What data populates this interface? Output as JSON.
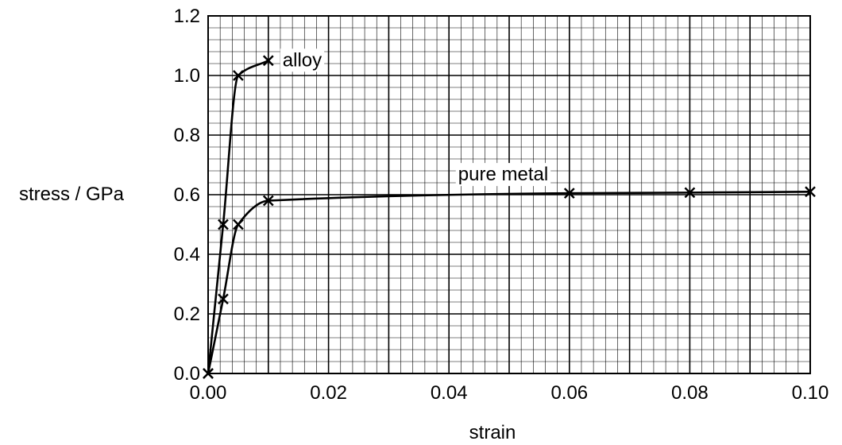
{
  "chart_data": {
    "type": "line",
    "xlabel": "strain",
    "ylabel": "stress / GPa",
    "xlim": [
      0,
      0.1
    ],
    "ylim": [
      0,
      1.2
    ],
    "x_ticks": [
      "0.00",
      "0.02",
      "0.04",
      "0.06",
      "0.08",
      "0.10"
    ],
    "y_ticks": [
      "0.0",
      "0.2",
      "0.4",
      "0.6",
      "0.8",
      "1.0",
      "1.2"
    ],
    "grid": true,
    "minor_grid": true,
    "legend": "none",
    "series": [
      {
        "name": "alloy",
        "points": [
          {
            "x": 0,
            "y": 0
          },
          {
            "x": 0.0025,
            "y": 0.5
          },
          {
            "x": 0.005,
            "y": 1.0
          },
          {
            "x": 0.01,
            "y": 1.05
          }
        ]
      },
      {
        "name": "pure metal",
        "points": [
          {
            "x": 0,
            "y": 0
          },
          {
            "x": 0.0025,
            "y": 0.25
          },
          {
            "x": 0.005,
            "y": 0.5
          },
          {
            "x": 0.01,
            "y": 0.58
          },
          {
            "x": 0.06,
            "y": 0.605
          },
          {
            "x": 0.08,
            "y": 0.607
          },
          {
            "x": 0.1,
            "y": 0.61
          }
        ]
      }
    ]
  }
}
